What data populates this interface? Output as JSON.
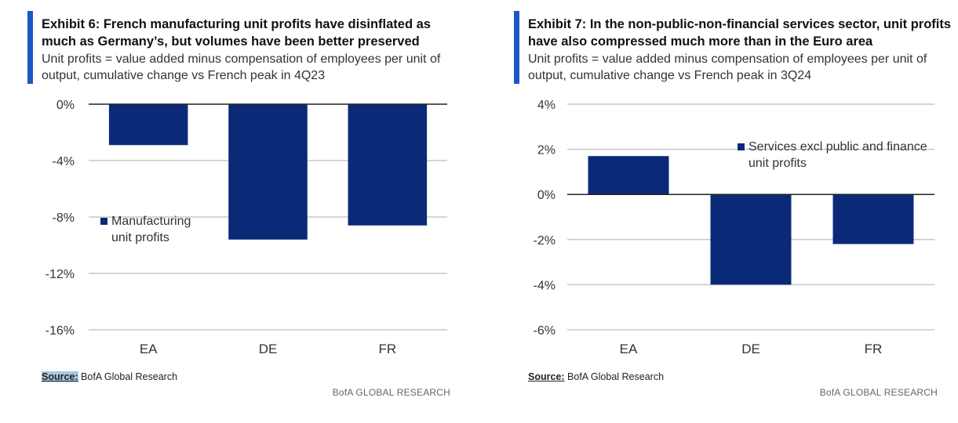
{
  "colors": {
    "accent": "#1a57c4",
    "bar": "#0a2a78",
    "grid": "#c8c8c8",
    "zero": "#222222"
  },
  "footer_text": "BofA GLOBAL RESEARCH",
  "source_label": "Source:",
  "source_text": "BofA Global Research",
  "chart_data": [
    {
      "type": "bar",
      "title": "Exhibit 6: French manufacturing unit profits have disinflated as much as Germany’s, but volumes have been better preserved",
      "subtitle": "Unit profits = value added minus compensation of employees per unit of output, cumulative change vs French peak in 4Q23",
      "categories": [
        "EA",
        "DE",
        "FR"
      ],
      "values": [
        -2.9,
        -9.6,
        -8.6
      ],
      "series_name": "Manufacturing unit profits",
      "legend_lines": [
        "Manufacturing",
        "unit profits"
      ],
      "ylim": [
        -16,
        0
      ],
      "yticks": [
        0,
        -4,
        -8,
        -12,
        -16
      ],
      "ytick_labels": [
        "0%",
        "-4%",
        "-8%",
        "-12%",
        "-16%"
      ],
      "xlabel": "",
      "ylabel": "",
      "grid": true
    },
    {
      "type": "bar",
      "title": "Exhibit 7: In the non-public-non-financial services sector, unit profits have also compressed much more than in the Euro area",
      "subtitle": "Unit profits = value added minus compensation of employees per unit of output, cumulative change vs French peak in 3Q24",
      "categories": [
        "EA",
        "DE",
        "FR"
      ],
      "values": [
        1.7,
        -4.0,
        -2.2
      ],
      "series_name": "Services excl public and finance unit profits",
      "legend_lines": [
        "Services excl public and finance",
        "unit profits"
      ],
      "ylim": [
        -6,
        4
      ],
      "yticks": [
        4,
        2,
        0,
        -2,
        -4,
        -6
      ],
      "ytick_labels": [
        "4%",
        "2%",
        "0%",
        "-2%",
        "-4%",
        "-6%"
      ],
      "xlabel": "",
      "ylabel": "",
      "grid": true
    }
  ]
}
